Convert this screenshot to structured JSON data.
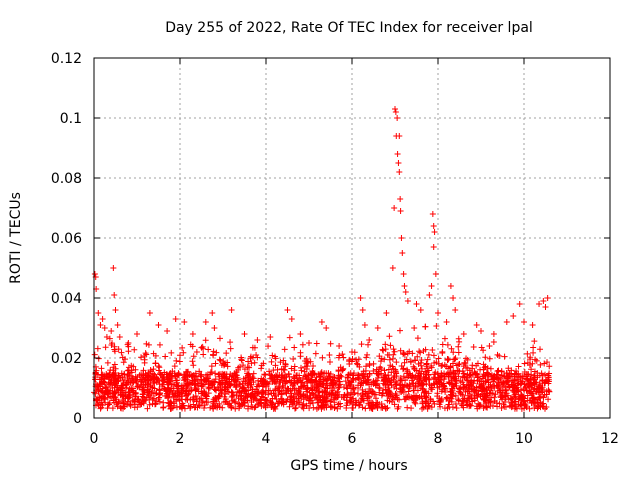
{
  "chart_data": {
    "type": "scatter",
    "title": "Day 255 of 2022, Rate Of TEC Index for receiver lpal",
    "xlabel": "GPS time / hours",
    "ylabel": "ROTI / TECUs",
    "xlim": [
      0,
      12
    ],
    "ylim": [
      0,
      0.12
    ],
    "xticks": [
      "0",
      "2",
      "4",
      "6",
      "8",
      "10",
      "12"
    ],
    "yticks": [
      "0",
      "0.02",
      "0.04",
      "0.06",
      "0.08",
      "0.1",
      "0.12"
    ],
    "grid": true,
    "marker": "plus",
    "color": "#ff0000",
    "data_range_x": [
      0,
      10.6
    ],
    "series": [
      {
        "name": "ROTI",
        "points": [
          [
            0.02,
            0.048
          ],
          [
            0.04,
            0.047
          ],
          [
            0.05,
            0.043
          ],
          [
            0.1,
            0.035
          ],
          [
            0.15,
            0.031
          ],
          [
            0.2,
            0.033
          ],
          [
            0.25,
            0.03
          ],
          [
            0.3,
            0.027
          ],
          [
            0.4,
            0.029
          ],
          [
            0.45,
            0.05
          ],
          [
            0.47,
            0.041
          ],
          [
            0.5,
            0.036
          ],
          [
            0.55,
            0.031
          ],
          [
            0.6,
            0.027
          ],
          [
            0.8,
            0.025
          ],
          [
            1.0,
            0.028
          ],
          [
            1.3,
            0.035
          ],
          [
            1.5,
            0.031
          ],
          [
            1.7,
            0.029
          ],
          [
            1.9,
            0.033
          ],
          [
            2.1,
            0.032
          ],
          [
            2.3,
            0.028
          ],
          [
            2.6,
            0.032
          ],
          [
            2.75,
            0.035
          ],
          [
            2.8,
            0.03
          ],
          [
            3.2,
            0.036
          ],
          [
            3.5,
            0.028
          ],
          [
            3.8,
            0.026
          ],
          [
            4.1,
            0.027
          ],
          [
            4.5,
            0.036
          ],
          [
            4.6,
            0.033
          ],
          [
            4.8,
            0.028
          ],
          [
            5.0,
            0.025
          ],
          [
            5.3,
            0.032
          ],
          [
            5.4,
            0.03
          ],
          [
            5.7,
            0.024
          ],
          [
            6.0,
            0.022
          ],
          [
            6.2,
            0.04
          ],
          [
            6.25,
            0.036
          ],
          [
            6.3,
            0.031
          ],
          [
            6.4,
            0.026
          ],
          [
            6.6,
            0.03
          ],
          [
            6.8,
            0.035
          ],
          [
            6.95,
            0.05
          ],
          [
            6.98,
            0.07
          ],
          [
            7.0,
            0.103
          ],
          [
            7.02,
            0.102
          ],
          [
            7.03,
            0.094
          ],
          [
            7.05,
            0.1
          ],
          [
            7.06,
            0.088
          ],
          [
            7.08,
            0.085
          ],
          [
            7.1,
            0.094
          ],
          [
            7.1,
            0.082
          ],
          [
            7.12,
            0.073
          ],
          [
            7.13,
            0.069
          ],
          [
            7.15,
            0.06
          ],
          [
            7.17,
            0.055
          ],
          [
            7.2,
            0.048
          ],
          [
            7.22,
            0.044
          ],
          [
            7.25,
            0.042
          ],
          [
            7.3,
            0.039
          ],
          [
            7.5,
            0.038
          ],
          [
            7.6,
            0.036
          ],
          [
            7.8,
            0.041
          ],
          [
            7.85,
            0.044
          ],
          [
            7.88,
            0.068
          ],
          [
            7.9,
            0.064
          ],
          [
            7.92,
            0.062
          ],
          [
            7.9,
            0.057
          ],
          [
            7.95,
            0.048
          ],
          [
            8.0,
            0.035
          ],
          [
            8.2,
            0.032
          ],
          [
            8.3,
            0.044
          ],
          [
            8.35,
            0.04
          ],
          [
            8.4,
            0.036
          ],
          [
            8.6,
            0.028
          ],
          [
            8.9,
            0.031
          ],
          [
            9.0,
            0.029
          ],
          [
            9.3,
            0.028
          ],
          [
            9.6,
            0.032
          ],
          [
            9.75,
            0.034
          ],
          [
            9.9,
            0.038
          ],
          [
            10.0,
            0.032
          ],
          [
            10.2,
            0.031
          ],
          [
            10.35,
            0.038
          ],
          [
            10.45,
            0.039
          ],
          [
            10.5,
            0.037
          ],
          [
            10.55,
            0.04
          ]
        ]
      }
    ]
  }
}
